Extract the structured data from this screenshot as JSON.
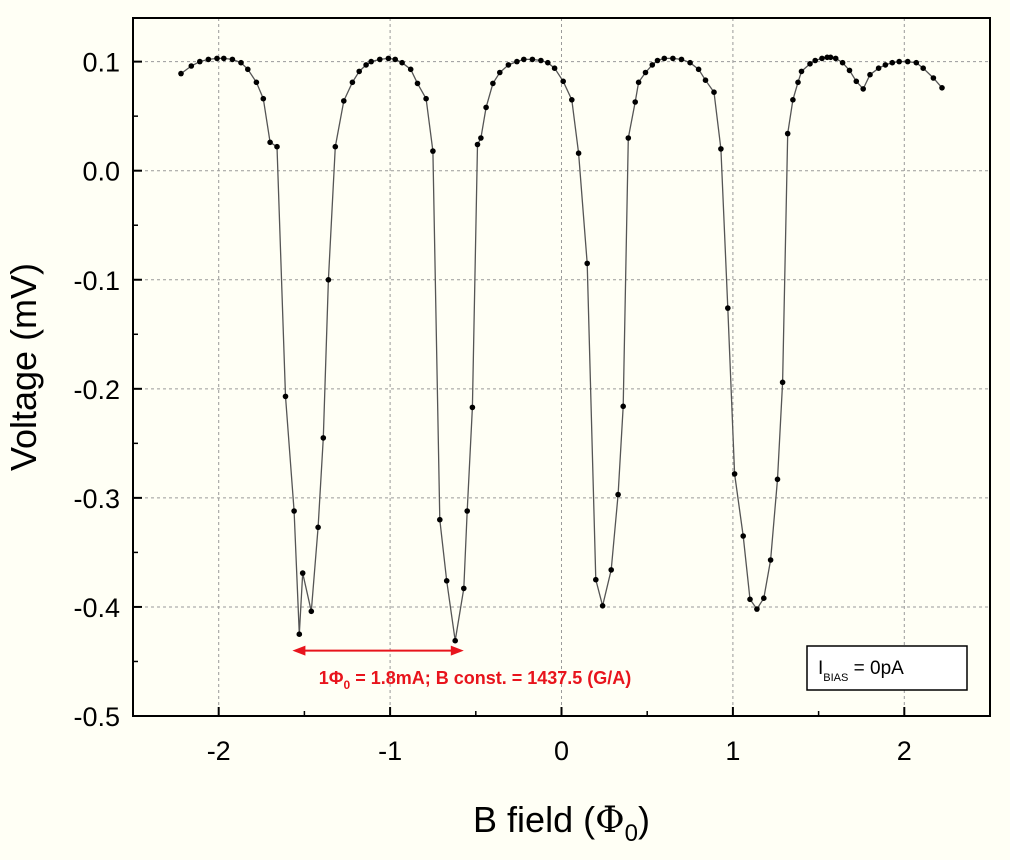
{
  "chart_data": {
    "type": "line",
    "xlabel_main": "B field (",
    "xlabel_symbol": "Φ",
    "xlabel_sub": "0",
    "xlabel_close": ")",
    "ylabel": "Voltage (mV)",
    "xlim": [
      -2.5,
      2.5
    ],
    "ylim": [
      -0.5,
      0.14
    ],
    "xticks": [
      -2,
      -1,
      0,
      1,
      2
    ],
    "xtick_labels": [
      "-2",
      "-1",
      "0",
      "1",
      "2"
    ],
    "yticks": [
      0.1,
      0.0,
      -0.1,
      -0.2,
      -0.3,
      -0.4,
      -0.5
    ],
    "ytick_labels": [
      "0.1",
      "0.0",
      "-0.1",
      "-0.2",
      "-0.3",
      "-0.4",
      "-0.5"
    ],
    "grid": true,
    "series": [
      {
        "line_color": "#555555",
        "marker_color": "#000000",
        "x": [
          -2.22,
          -2.16,
          -2.11,
          -2.06,
          -2.01,
          -1.97,
          -1.92,
          -1.87,
          -1.83,
          -1.78,
          -1.74,
          -1.7,
          -1.66,
          -1.61,
          -1.56,
          -1.53,
          -1.51,
          -1.46,
          -1.42,
          -1.39,
          -1.36,
          -1.32,
          -1.27,
          -1.22,
          -1.18,
          -1.14,
          -1.11,
          -1.06,
          -1.01,
          -0.97,
          -0.93,
          -0.88,
          -0.84,
          -0.79,
          -0.75,
          -0.71,
          -0.67,
          -0.62,
          -0.57,
          -0.55,
          -0.52,
          -0.49,
          -0.47,
          -0.44,
          -0.4,
          -0.36,
          -0.31,
          -0.26,
          -0.22,
          -0.17,
          -0.12,
          -0.08,
          -0.04,
          0.01,
          0.06,
          0.1,
          0.15,
          0.2,
          0.24,
          0.29,
          0.33,
          0.36,
          0.39,
          0.43,
          0.45,
          0.49,
          0.53,
          0.56,
          0.6,
          0.65,
          0.7,
          0.75,
          0.8,
          0.84,
          0.89,
          0.93,
          0.97,
          1.01,
          1.06,
          1.1,
          1.14,
          1.18,
          1.22,
          1.26,
          1.29,
          1.32,
          1.35,
          1.38,
          1.4,
          1.45,
          1.48,
          1.52,
          1.55,
          1.57,
          1.6,
          1.64,
          1.68,
          1.72,
          1.76,
          1.8,
          1.85,
          1.89,
          1.93,
          1.97,
          2.02,
          2.07,
          2.11,
          2.17,
          2.22
        ],
        "y": [
          0.089,
          0.096,
          0.1,
          0.102,
          0.103,
          0.103,
          0.102,
          0.099,
          0.093,
          0.081,
          0.066,
          0.026,
          0.022,
          -0.207,
          -0.312,
          -0.425,
          -0.369,
          -0.404,
          -0.327,
          -0.245,
          -0.1,
          0.022,
          0.064,
          0.081,
          0.091,
          0.097,
          0.1,
          0.102,
          0.103,
          0.102,
          0.099,
          0.093,
          0.08,
          0.066,
          0.018,
          -0.32,
          -0.376,
          -0.431,
          -0.383,
          -0.312,
          -0.217,
          0.024,
          0.03,
          0.058,
          0.08,
          0.09,
          0.097,
          0.1,
          0.102,
          0.102,
          0.101,
          0.099,
          0.094,
          0.082,
          0.065,
          0.016,
          -0.085,
          -0.375,
          -0.399,
          -0.366,
          -0.297,
          -0.216,
          0.03,
          0.063,
          0.081,
          0.09,
          0.097,
          0.101,
          0.103,
          0.103,
          0.102,
          0.099,
          0.093,
          0.083,
          0.072,
          0.02,
          -0.126,
          -0.278,
          -0.335,
          -0.393,
          -0.402,
          -0.392,
          -0.357,
          -0.283,
          -0.194,
          0.034,
          0.065,
          0.081,
          0.091,
          0.098,
          0.101,
          0.103,
          0.104,
          0.104,
          0.103,
          0.099,
          0.092,
          0.082,
          0.075,
          0.088,
          0.094,
          0.097,
          0.099,
          0.1,
          0.1,
          0.099,
          0.094,
          0.085,
          0.076
        ]
      }
    ],
    "annotation": {
      "prefix": "1",
      "symbol": "Φ",
      "sub": "0",
      "rest": " = 1.8mA; B const. = 1437.5 (G/A)",
      "color": "#e8141c",
      "arrow_from_x": -1.57,
      "arrow_to_x": -0.57,
      "arrow_y": -0.44
    },
    "legend": {
      "main": "I",
      "sub": "BIAS",
      "rest": " = 0pA",
      "placement": "bottom-right"
    }
  }
}
